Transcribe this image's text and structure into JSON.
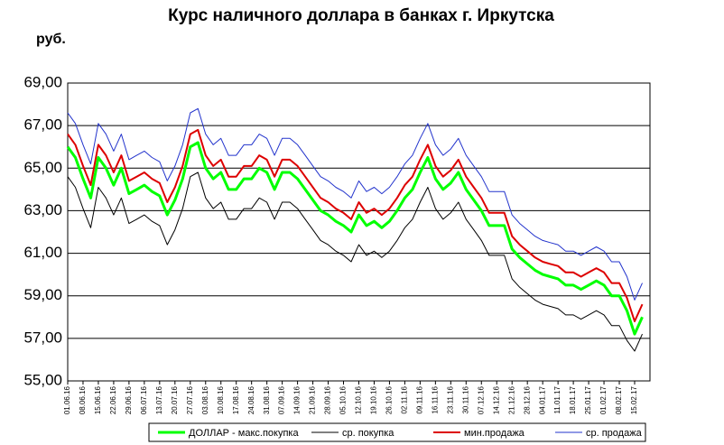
{
  "chart_data": {
    "type": "line",
    "title": "Курс наличного доллара в банках г. Иркутска",
    "y_label": "руб.",
    "categories": [
      "01.06.16",
      null,
      "08.06.16",
      null,
      "15.06.16",
      null,
      "22.06.16",
      null,
      "29.06.16",
      null,
      "06.07.16",
      null,
      "13.07.16",
      null,
      "20.07.16",
      null,
      "27.07.16",
      null,
      "03.08.16",
      null,
      "10.08.16",
      null,
      "17.08.16",
      null,
      "24.08.16",
      null,
      "31.08.16",
      null,
      "07.09.16",
      null,
      "14.09.16",
      null,
      "21.09.16",
      null,
      "28.09.16",
      null,
      "05.10.16",
      null,
      "12.10.16",
      null,
      "19.10.16",
      null,
      "26.10.16",
      null,
      "02.11.16",
      null,
      "09.11.16",
      null,
      "16.11.16",
      null,
      "23.11.16",
      null,
      "30.11.16",
      null,
      "07.12.16",
      null,
      "14.12.16",
      null,
      "21.12.16",
      null,
      "28.12.16",
      null,
      "04.01.17",
      null,
      "11.01.17",
      null,
      "18.01.17",
      null,
      "25.01.17",
      null,
      "01.02.17",
      null,
      "08.02.17",
      null,
      "15.02.17",
      null
    ],
    "series": [
      {
        "name": "ДОЛЛАР  - макс.покупка",
        "color": "#00ff00",
        "width": 3,
        "values": [
          66.0,
          65.5,
          64.5,
          63.6,
          65.5,
          65.0,
          64.2,
          65.0,
          63.8,
          64.0,
          64.2,
          63.9,
          63.7,
          62.8,
          63.5,
          64.5,
          66.0,
          66.2,
          65.0,
          64.5,
          64.8,
          64.0,
          64.0,
          64.5,
          64.5,
          65.0,
          64.8,
          64.0,
          64.8,
          64.8,
          64.5,
          64.0,
          63.5,
          63.0,
          62.8,
          62.5,
          62.3,
          62.0,
          62.8,
          62.3,
          62.5,
          62.2,
          62.5,
          63.0,
          63.6,
          64.0,
          64.8,
          65.5,
          64.5,
          64.0,
          64.3,
          64.8,
          64.0,
          63.5,
          63.0,
          62.3,
          62.3,
          62.3,
          61.2,
          60.8,
          60.5,
          60.2,
          60.0,
          59.9,
          59.8,
          59.5,
          59.5,
          59.3,
          59.5,
          59.7,
          59.5,
          59.0,
          59.0,
          58.3,
          57.2,
          58.0
        ]
      },
      {
        "name": "ср. покупка",
        "color": "#000000",
        "width": 1,
        "values": [
          64.6,
          64.1,
          63.1,
          62.2,
          64.1,
          63.6,
          62.8,
          63.6,
          62.4,
          62.6,
          62.8,
          62.5,
          62.3,
          61.4,
          62.1,
          63.1,
          64.6,
          64.8,
          63.6,
          63.1,
          63.4,
          62.6,
          62.6,
          63.1,
          63.1,
          63.6,
          63.4,
          62.6,
          63.4,
          63.4,
          63.1,
          62.6,
          62.1,
          61.6,
          61.4,
          61.1,
          60.9,
          60.6,
          61.4,
          60.9,
          61.1,
          60.8,
          61.1,
          61.6,
          62.2,
          62.6,
          63.4,
          64.1,
          63.1,
          62.6,
          62.9,
          63.4,
          62.6,
          62.1,
          61.6,
          60.9,
          60.9,
          60.9,
          59.8,
          59.4,
          59.1,
          58.8,
          58.6,
          58.5,
          58.4,
          58.1,
          58.1,
          57.9,
          58.1,
          58.3,
          58.1,
          57.6,
          57.6,
          56.9,
          56.4,
          57.2
        ]
      },
      {
        "name": "мин.продажа",
        "color": "#dd0000",
        "width": 2,
        "values": [
          66.6,
          66.1,
          65.1,
          64.2,
          66.1,
          65.6,
          64.8,
          65.6,
          64.4,
          64.6,
          64.8,
          64.5,
          64.3,
          63.4,
          64.1,
          65.1,
          66.6,
          66.8,
          65.6,
          65.1,
          65.4,
          64.6,
          64.6,
          65.1,
          65.1,
          65.6,
          65.4,
          64.6,
          65.4,
          65.4,
          65.1,
          64.6,
          64.1,
          63.6,
          63.4,
          63.1,
          62.9,
          62.6,
          63.4,
          62.9,
          63.1,
          62.8,
          63.1,
          63.6,
          64.2,
          64.6,
          65.4,
          66.1,
          65.1,
          64.6,
          64.9,
          65.4,
          64.6,
          64.1,
          63.6,
          62.9,
          62.9,
          62.9,
          61.8,
          61.4,
          61.1,
          60.8,
          60.6,
          60.5,
          60.4,
          60.1,
          60.1,
          59.9,
          60.1,
          60.3,
          60.1,
          59.6,
          59.6,
          58.9,
          57.8,
          58.6
        ]
      },
      {
        "name": "ср. продажа",
        "color": "#2233cc",
        "width": 1,
        "values": [
          67.6,
          67.1,
          66.1,
          65.2,
          67.1,
          66.6,
          65.8,
          66.6,
          65.4,
          65.6,
          65.8,
          65.5,
          65.3,
          64.4,
          65.1,
          66.1,
          67.6,
          67.8,
          66.6,
          66.1,
          66.4,
          65.6,
          65.6,
          66.1,
          66.1,
          66.6,
          66.4,
          65.6,
          66.4,
          66.4,
          66.1,
          65.6,
          65.1,
          64.6,
          64.4,
          64.1,
          63.9,
          63.6,
          64.4,
          63.9,
          64.1,
          63.8,
          64.1,
          64.6,
          65.2,
          65.6,
          66.4,
          67.1,
          66.1,
          65.6,
          65.9,
          66.4,
          65.6,
          65.1,
          64.6,
          63.9,
          63.9,
          63.9,
          62.8,
          62.4,
          62.1,
          61.8,
          61.6,
          61.5,
          61.4,
          61.1,
          61.1,
          60.9,
          61.1,
          61.3,
          61.1,
          60.6,
          60.6,
          59.9,
          58.8,
          59.6
        ]
      }
    ],
    "ylim": [
      55,
      69
    ],
    "yticks": [
      {
        "value": 55,
        "label": "55,00"
      },
      {
        "value": 57,
        "label": "57,00"
      },
      {
        "value": 59,
        "label": "59,00"
      },
      {
        "value": 61,
        "label": "61,00"
      },
      {
        "value": 63,
        "label": "63,00"
      },
      {
        "value": 65,
        "label": "65,00"
      },
      {
        "value": 67,
        "label": "67,00"
      },
      {
        "value": 69,
        "label": "69,00"
      }
    ],
    "grid": true,
    "legend": "bottom"
  }
}
